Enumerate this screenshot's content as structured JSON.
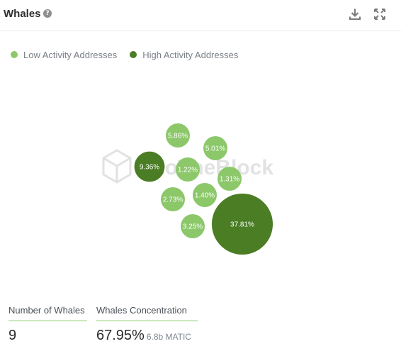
{
  "header": {
    "title": "Whales",
    "help_glyph": "?",
    "download_icon": "download-icon",
    "expand_icon": "expand-icon"
  },
  "legend": [
    {
      "label": "Low Activity Addresses",
      "color": "#8cc86a"
    },
    {
      "label": "High Activity Addresses",
      "color": "#4a7d24"
    }
  ],
  "watermark": "IntoTheBlock",
  "chart_data": {
    "type": "bubble",
    "unit": "%",
    "series": [
      {
        "name": "Low Activity Addresses",
        "color": "#8cc86a",
        "values": [
          5.86,
          5.01,
          1.22,
          1.31,
          2.73,
          1.4,
          3.25
        ]
      },
      {
        "name": "High Activity Addresses",
        "color": "#4a7d24",
        "values": [
          9.36,
          37.81
        ]
      }
    ]
  },
  "stats": {
    "whales_count_label": "Number of Whales",
    "whales_count_value": "9",
    "concentration_label": "Whales Concentration",
    "concentration_value": "67.95%",
    "concentration_sub": "6.8b MATIC"
  }
}
